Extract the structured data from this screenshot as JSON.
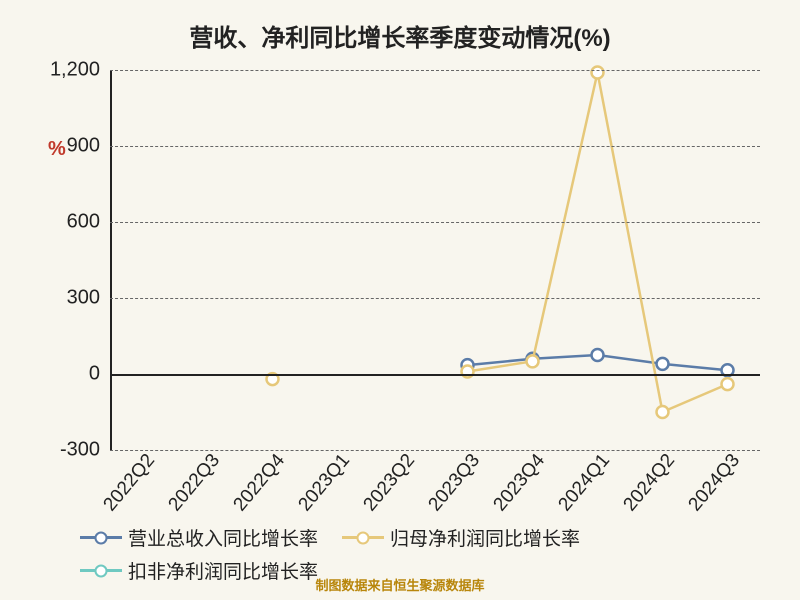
{
  "chart": {
    "type": "line",
    "title": "营收、净利同比增长率季度变动情况(%)",
    "title_fontsize": 24,
    "background_color": "#f8f6ee",
    "ylabel": "%",
    "ylabel_color": "#c0392b",
    "ylim": [
      -300,
      1200
    ],
    "ytick_step": 300,
    "yticks": [
      -300,
      0,
      300,
      600,
      900,
      1200
    ],
    "gridline_color": "#666666",
    "gridline_dash": "4 4",
    "axis_color": "#222222",
    "marker_fill": "#ffffff",
    "marker_size": 6,
    "line_width": 2.5,
    "categories": [
      "2022Q2",
      "2022Q3",
      "2022Q4",
      "2023Q1",
      "2023Q2",
      "2023Q3",
      "2023Q4",
      "2024Q1",
      "2024Q2",
      "2024Q3"
    ],
    "series": [
      {
        "name": "营业总收入同比增长率",
        "color": "#5b7ca8",
        "values": [
          null,
          null,
          null,
          null,
          null,
          35,
          60,
          75,
          40,
          15
        ]
      },
      {
        "name": "归母净利润同比增长率",
        "color": "#e6c87a",
        "values": [
          null,
          null,
          -20,
          null,
          null,
          10,
          50,
          1190,
          -150,
          -40
        ]
      },
      {
        "name": "扣非净利润同比增长率",
        "color": "#6fc9c1",
        "values": [
          null,
          null,
          null,
          null,
          null,
          null,
          null,
          null,
          null,
          null
        ]
      }
    ],
    "footer": "制图数据来自恒生聚源数据库",
    "footer_color": "#b8860b"
  }
}
